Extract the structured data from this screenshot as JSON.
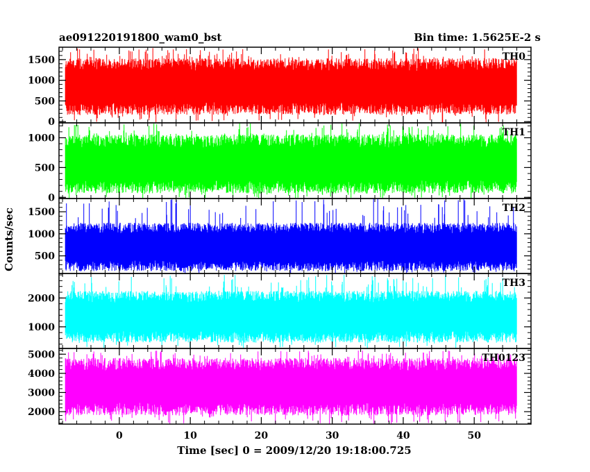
{
  "header": {
    "title": "ae091220191800_wam0_bst",
    "bin_time": "Bin time: 1.5625E-2 s"
  },
  "chart_data": {
    "type": "line",
    "title": "ae091220191800_wam0_bst",
    "subtitle": "Bin time: 1.5625E-2 s",
    "xlabel": "Time [sec] 0 = 2009/12/20 19:18:00.725",
    "ylabel": "Counts/sec",
    "xlim": [
      -8.5,
      58
    ],
    "data_x_range": [
      -7.6,
      56
    ],
    "xticks": [
      0,
      10,
      20,
      30,
      40,
      50
    ],
    "grid": false,
    "panels": [
      {
        "name": "TH0",
        "color": "#ff0000",
        "ylim": [
          -30,
          1800
        ],
        "yticks": [
          0,
          500,
          1000,
          1500
        ],
        "mean": 850,
        "low_envelope": 180,
        "high_envelope": 1550,
        "peak": 1780
      },
      {
        "name": "TH1",
        "color": "#00ff00",
        "ylim": [
          -20,
          1250
        ],
        "yticks": [
          0,
          500,
          1000
        ],
        "mean": 560,
        "low_envelope": 60,
        "high_envelope": 1050,
        "peak": 1240
      },
      {
        "name": "TH2",
        "color": "#0000ff",
        "ylim": [
          100,
          1800
        ],
        "yticks": [
          500,
          1000,
          1500
        ],
        "mean": 700,
        "low_envelope": 250,
        "high_envelope": 1350,
        "peak": 1800
      },
      {
        "name": "TH3",
        "color": "#00ffff",
        "ylim": [
          250,
          2850
        ],
        "yticks": [
          1000,
          2000
        ],
        "mean": 1350,
        "low_envelope": 550,
        "high_envelope": 2350,
        "peak": 2800
      },
      {
        "name": "TH0123",
        "color": "#ff00ff",
        "ylim": [
          1350,
          5300
        ],
        "yticks": [
          2000,
          3000,
          4000,
          5000
        ],
        "mean": 3300,
        "low_envelope": 1800,
        "high_envelope": 4800,
        "peak": 5200
      }
    ]
  }
}
